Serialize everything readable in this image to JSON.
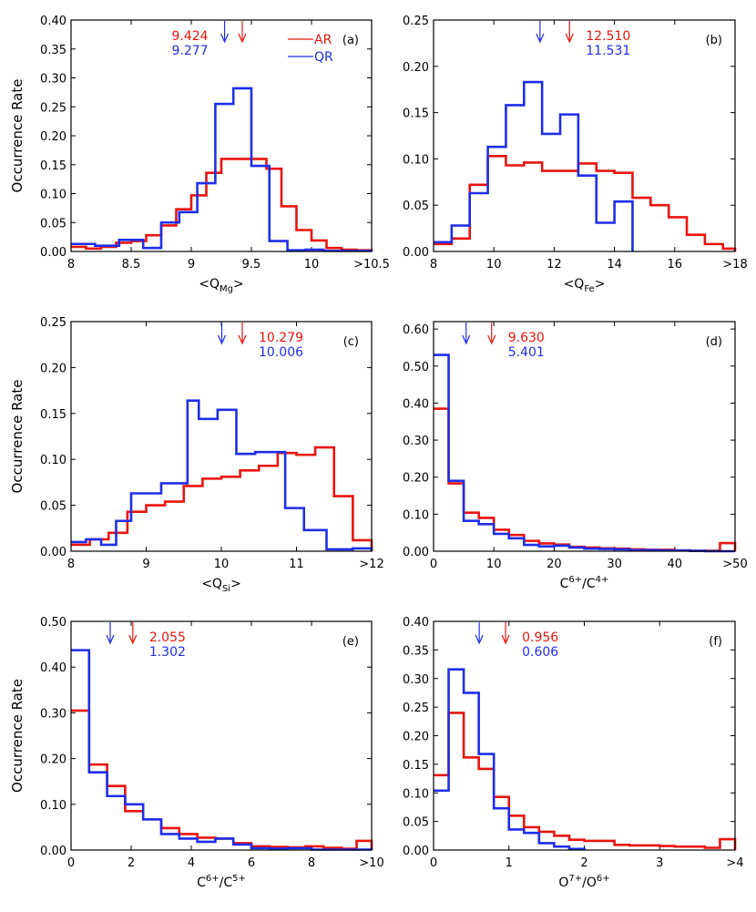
{
  "figure": {
    "colors": {
      "AR": "#e8150f",
      "QR": "#1f2ee8",
      "axis": "#000000"
    },
    "legend": {
      "AR": "AR",
      "QR": "QR"
    }
  },
  "chart_data": [
    {
      "id": "a",
      "type": "step",
      "panel_label": "(a)",
      "xlabel_main": "<Q",
      "xlabel_sub": "Mg",
      "xlabel_tail": ">",
      "ylabel": "Occurrence Rate",
      "show_ylabel": true,
      "show_legend": true,
      "xlim": [
        8,
        10.5
      ],
      "ylim": [
        0,
        0.4
      ],
      "xticks": [
        8,
        8.5,
        9,
        9.5,
        10,
        10.5
      ],
      "xticklabels": [
        "8",
        "8.5",
        "9",
        "9.5",
        "10",
        ">10.5"
      ],
      "yticks": [
        0,
        0.05,
        0.1,
        0.15,
        0.2,
        0.25,
        0.3,
        0.35,
        0.4
      ],
      "yticklabels": [
        "0.00",
        "0.05",
        "0.10",
        "0.15",
        "0.20",
        "0.25",
        "0.30",
        "0.35",
        "0.40"
      ],
      "ann_pos": "left",
      "series": [
        {
          "name": "AR",
          "mean": 9.424,
          "mean_label": "9.424",
          "edges": [
            8,
            8.125,
            8.25,
            8.375,
            8.5,
            8.625,
            8.75,
            8.875,
            9,
            9.125,
            9.25,
            9.375,
            9.5,
            9.625,
            9.75,
            9.875,
            10,
            10.125,
            10.25,
            10.375,
            10.5
          ],
          "values": [
            0.008,
            0.005,
            0.008,
            0.015,
            0.018,
            0.028,
            0.045,
            0.073,
            0.097,
            0.136,
            0.16,
            0.16,
            0.16,
            0.143,
            0.078,
            0.037,
            0.019,
            0.006,
            0.003,
            0.002
          ]
        },
        {
          "name": "QR",
          "mean": 9.277,
          "mean_label": "9.277",
          "edges": [
            8,
            8.2,
            8.4,
            8.6,
            8.75,
            8.9,
            9.05,
            9.2,
            9.35,
            9.5,
            9.65,
            9.8,
            9.95,
            10.1,
            10.5
          ],
          "values": [
            0.013,
            0.01,
            0.02,
            0.006,
            0.05,
            0.068,
            0.118,
            0.255,
            0.282,
            0.148,
            0.018,
            0.002,
            0.003,
            0.001
          ]
        }
      ]
    },
    {
      "id": "b",
      "type": "step",
      "panel_label": "(b)",
      "xlabel_main": "<Q",
      "xlabel_sub": "Fe",
      "xlabel_tail": ">",
      "ylabel": "",
      "show_ylabel": false,
      "show_legend": false,
      "xlim": [
        8,
        18
      ],
      "ylim": [
        0,
        0.25
      ],
      "xticks": [
        8,
        10,
        12,
        14,
        16,
        18
      ],
      "xticklabels": [
        "8",
        "10",
        "12",
        "14",
        "16",
        ">18"
      ],
      "yticks": [
        0,
        0.05,
        0.1,
        0.15,
        0.2,
        0.25
      ],
      "yticklabels": [
        "0.00",
        "0.05",
        "0.10",
        "0.15",
        "0.20",
        "0.25"
      ],
      "ann_pos": "right",
      "series": [
        {
          "name": "AR",
          "mean": 12.51,
          "mean_label": "12.510",
          "edges": [
            8,
            8.6,
            9.2,
            9.8,
            10.4,
            11,
            11.6,
            12.2,
            12.8,
            13.4,
            14,
            14.6,
            15.2,
            15.8,
            16.4,
            17,
            17.6,
            18
          ],
          "values": [
            0.008,
            0.014,
            0.072,
            0.103,
            0.093,
            0.096,
            0.087,
            0.087,
            0.095,
            0.087,
            0.085,
            0.058,
            0.05,
            0.037,
            0.018,
            0.008,
            0.003
          ]
        },
        {
          "name": "QR",
          "mean": 11.531,
          "mean_label": "11.531",
          "edges": [
            8,
            8.6,
            9.2,
            9.8,
            10.4,
            11,
            11.6,
            12.2,
            12.8,
            13.4,
            14,
            14.6
          ],
          "values": [
            0.01,
            0.028,
            0.063,
            0.113,
            0.158,
            0.183,
            0.127,
            0.148,
            0.082,
            0.031,
            0.054
          ]
        }
      ]
    },
    {
      "id": "c",
      "type": "step",
      "panel_label": "(c)",
      "xlabel_main": "<Q",
      "xlabel_sub": "Si",
      "xlabel_tail": ">",
      "ylabel": "Occurrence Rate",
      "show_ylabel": true,
      "show_legend": false,
      "xlim": [
        8,
        12
      ],
      "ylim": [
        0,
        0.25
      ],
      "xticks": [
        8,
        9,
        10,
        11,
        12
      ],
      "xticklabels": [
        "8",
        "9",
        "10",
        "11",
        ">12"
      ],
      "yticks": [
        0,
        0.05,
        0.1,
        0.15,
        0.2,
        0.25
      ],
      "yticklabels": [
        "0.00",
        "0.05",
        "0.10",
        "0.15",
        "0.20",
        "0.25"
      ],
      "ann_pos": "right",
      "series": [
        {
          "name": "AR",
          "mean": 10.279,
          "mean_label": "10.279",
          "edges": [
            8,
            8.25,
            8.5,
            8.75,
            9,
            9.25,
            9.5,
            9.75,
            10,
            10.25,
            10.5,
            10.75,
            11,
            11.25,
            11.5,
            11.75,
            12
          ],
          "values": [
            0.007,
            0.013,
            0.02,
            0.043,
            0.05,
            0.054,
            0.071,
            0.079,
            0.081,
            0.088,
            0.093,
            0.107,
            0.105,
            0.113,
            0.06,
            0.012
          ]
        },
        {
          "name": "QR",
          "mean": 10.006,
          "mean_label": "10.006",
          "edges": [
            8,
            8.2,
            8.4,
            8.6,
            8.8,
            9.2,
            9.55,
            9.7,
            9.95,
            10.2,
            10.45,
            10.85,
            11.1,
            11.4,
            11.75,
            12
          ],
          "values": [
            0.01,
            0.013,
            0.007,
            0.033,
            0.063,
            0.074,
            0.164,
            0.144,
            0.154,
            0.106,
            0.108,
            0.047,
            0.023,
            0.002,
            0.003
          ]
        }
      ]
    },
    {
      "id": "d",
      "type": "step",
      "panel_label": "(d)",
      "xlabel_main": "C",
      "xlabel_sup1": "6+",
      "xlabel_mid": "/C",
      "xlabel_sup2": "4+",
      "ylabel": "",
      "show_ylabel": false,
      "show_legend": false,
      "xlim": [
        0,
        50
      ],
      "ylim": [
        0,
        0.62
      ],
      "xticks": [
        0,
        10,
        20,
        30,
        40,
        50
      ],
      "xticklabels": [
        "0",
        "10",
        "20",
        "30",
        "40",
        ">50"
      ],
      "yticks": [
        0,
        0.1,
        0.2,
        0.3,
        0.4,
        0.5,
        0.6
      ],
      "yticklabels": [
        "0.00",
        "0.10",
        "0.20",
        "0.30",
        "0.40",
        "0.50",
        "0.60"
      ],
      "ann_pos": "right",
      "series": [
        {
          "name": "AR",
          "mean": 9.63,
          "mean_label": "9.630",
          "edges": [
            0,
            2.5,
            5,
            7.5,
            10,
            12.5,
            15,
            17.5,
            20,
            22.5,
            25,
            27.5,
            30,
            32.5,
            35,
            37.5,
            40,
            42.5,
            45,
            47.5,
            50
          ],
          "values": [
            0.385,
            0.183,
            0.104,
            0.09,
            0.058,
            0.044,
            0.028,
            0.021,
            0.018,
            0.012,
            0.01,
            0.008,
            0.007,
            0.005,
            0.004,
            0.004,
            0.002,
            0.001,
            0.001,
            0.022
          ]
        },
        {
          "name": "QR",
          "mean": 5.401,
          "mean_label": "5.401",
          "edges": [
            0,
            2.5,
            5,
            7.5,
            10,
            12.5,
            15,
            17.5,
            20,
            22.5,
            25,
            27.5,
            30,
            32.5,
            35,
            37.5,
            40,
            42.5,
            45,
            50
          ],
          "values": [
            0.53,
            0.19,
            0.082,
            0.073,
            0.047,
            0.035,
            0.017,
            0.013,
            0.015,
            0.01,
            0.007,
            0.006,
            0.005,
            0.003,
            0.003,
            0.002,
            0.002,
            0.001,
            0.0
          ]
        }
      ]
    },
    {
      "id": "e",
      "type": "step",
      "panel_label": "(e)",
      "xlabel_main": "C",
      "xlabel_sup1": "6+",
      "xlabel_mid": "/C",
      "xlabel_sup2": "5+",
      "ylabel": "Occurrence Rate",
      "show_ylabel": true,
      "show_legend": false,
      "xlim": [
        0,
        10
      ],
      "ylim": [
        0,
        0.5
      ],
      "xticks": [
        0,
        2,
        4,
        6,
        8,
        10
      ],
      "xticklabels": [
        "0",
        "2",
        "4",
        "6",
        "8",
        ">10"
      ],
      "yticks": [
        0,
        0.1,
        0.2,
        0.3,
        0.4,
        0.5
      ],
      "yticklabels": [
        "0.00",
        "0.10",
        "0.20",
        "0.30",
        "0.40",
        "0.50"
      ],
      "ann_pos": "right",
      "series": [
        {
          "name": "AR",
          "mean": 2.055,
          "mean_label": "2.055",
          "edges": [
            0,
            0.6,
            1.2,
            1.8,
            2.4,
            3,
            3.6,
            4.2,
            4.8,
            5.4,
            6,
            6.6,
            7.2,
            7.8,
            8.4,
            9,
            9.5,
            10
          ],
          "values": [
            0.305,
            0.187,
            0.14,
            0.085,
            0.067,
            0.048,
            0.035,
            0.027,
            0.025,
            0.015,
            0.008,
            0.007,
            0.006,
            0.008,
            0.005,
            0.003,
            0.02
          ]
        },
        {
          "name": "QR",
          "mean": 1.302,
          "mean_label": "1.302",
          "edges": [
            0,
            0.6,
            1.2,
            1.8,
            2.4,
            3,
            3.6,
            4.2,
            4.8,
            5.4,
            6,
            6.6,
            7.2,
            8,
            10
          ],
          "values": [
            0.437,
            0.17,
            0.118,
            0.1,
            0.067,
            0.035,
            0.025,
            0.018,
            0.025,
            0.012,
            0.004,
            0.003,
            0.004,
            0.001
          ]
        }
      ]
    },
    {
      "id": "f",
      "type": "step",
      "panel_label": "(f)",
      "xlabel_main": "O",
      "xlabel_sup1": "7+",
      "xlabel_mid": "/O",
      "xlabel_sup2": "6+",
      "ylabel": "",
      "show_ylabel": false,
      "show_legend": false,
      "xlim": [
        0,
        4
      ],
      "ylim": [
        0,
        0.4
      ],
      "xticks": [
        0,
        1,
        2,
        3,
        4
      ],
      "xticklabels": [
        "0",
        "1",
        "2",
        "3",
        ">4"
      ],
      "yticks": [
        0,
        0.05,
        0.1,
        0.15,
        0.2,
        0.25,
        0.3,
        0.35,
        0.4
      ],
      "yticklabels": [
        "0.00",
        "0.05",
        "0.10",
        "0.15",
        "0.20",
        "0.25",
        "0.30",
        "0.35",
        "0.40"
      ],
      "ann_pos": "right",
      "series": [
        {
          "name": "AR",
          "mean": 0.956,
          "mean_label": "0.956",
          "edges": [
            0,
            0.2,
            0.4,
            0.6,
            0.8,
            1.0,
            1.2,
            1.4,
            1.6,
            1.8,
            2.0,
            2.2,
            2.4,
            2.6,
            2.8,
            3.0,
            3.2,
            3.4,
            3.6,
            3.8,
            4.0
          ],
          "values": [
            0.131,
            0.24,
            0.162,
            0.142,
            0.093,
            0.06,
            0.04,
            0.032,
            0.025,
            0.018,
            0.016,
            0.016,
            0.009,
            0.008,
            0.008,
            0.007,
            0.006,
            0.006,
            0.004,
            0.019
          ]
        },
        {
          "name": "QR",
          "mean": 0.606,
          "mean_label": "0.606",
          "edges": [
            0,
            0.2,
            0.4,
            0.6,
            0.8,
            1.0,
            1.2,
            1.4,
            1.6,
            1.8,
            2.0
          ],
          "values": [
            0.104,
            0.316,
            0.275,
            0.168,
            0.073,
            0.036,
            0.03,
            0.012,
            0.006,
            0.002
          ]
        }
      ]
    }
  ]
}
